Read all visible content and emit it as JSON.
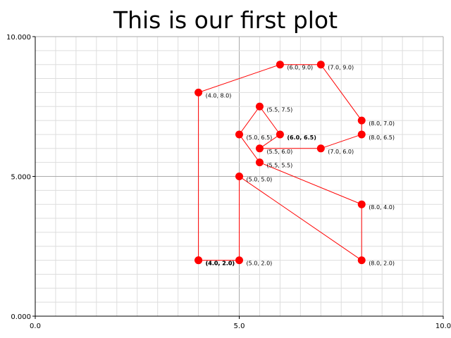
{
  "chart_data": {
    "type": "line",
    "title": "This is our first plot",
    "xlabel": "",
    "ylabel": "",
    "xlim": [
      0,
      10
    ],
    "ylim": [
      0,
      10
    ],
    "x_ticks": [
      {
        "value": 0,
        "label": "0.0"
      },
      {
        "value": 5,
        "label": "5.0"
      },
      {
        "value": 10,
        "label": "10.0"
      }
    ],
    "y_ticks": [
      {
        "value": 0,
        "label": "0.000"
      },
      {
        "value": 5,
        "label": "5.000"
      },
      {
        "value": 10,
        "label": "10.000"
      }
    ],
    "grid": true,
    "minor_grid_step": 0.5,
    "line_color": "#ff0000",
    "marker_color": "#ff0000",
    "grid_color": "#dddddd",
    "major_grid_color": "#aaaaaa",
    "series": [
      {
        "points": [
          {
            "x": 4.0,
            "y": 2.0,
            "label": "(4.0, 2.0)",
            "bold": true
          },
          {
            "x": 4.0,
            "y": 8.0,
            "label": "(4.0, 8.0)"
          },
          {
            "x": 6.0,
            "y": 9.0,
            "label": "(6.0, 9.0)"
          },
          {
            "x": 7.0,
            "y": 9.0,
            "label": "(7.0, 9.0)"
          },
          {
            "x": 8.0,
            "y": 7.0,
            "label": "(8.0, 7.0)"
          },
          {
            "x": 8.0,
            "y": 6.5,
            "label": "(8.0, 6.5)"
          },
          {
            "x": 7.0,
            "y": 6.0,
            "label": "(7.0, 6.0)"
          },
          {
            "x": 5.5,
            "y": 6.0,
            "label": "(5.5, 6.0)"
          },
          {
            "x": 6.0,
            "y": 6.5,
            "label": "(6.0, 6.5)",
            "bold": true
          },
          {
            "x": 5.5,
            "y": 7.5,
            "label": "(5.5, 7.5)"
          },
          {
            "x": 5.0,
            "y": 6.5,
            "label": "(5.0, 6.5)"
          },
          {
            "x": 5.5,
            "y": 5.5,
            "label": "(5.5, 5.5)"
          },
          {
            "x": 8.0,
            "y": 4.0,
            "label": "(8.0, 4.0)"
          },
          {
            "x": 8.0,
            "y": 2.0,
            "label": "(8.0, 2.0)"
          },
          {
            "x": 5.0,
            "y": 5.0,
            "label": "(5.0, 5.0)"
          },
          {
            "x": 5.0,
            "y": 2.0,
            "label": "(5.0, 2.0)"
          },
          {
            "x": 4.0,
            "y": 2.0,
            "label": "(4.0, 2.0)",
            "bold": true
          }
        ]
      }
    ]
  }
}
